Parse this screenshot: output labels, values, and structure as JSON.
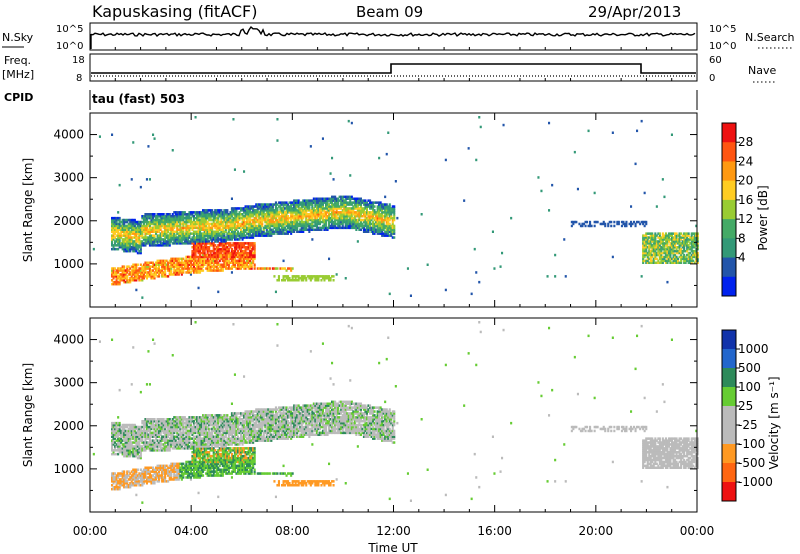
{
  "header": {
    "title": "Kapuskasing (fitACF)",
    "beam": "Beam 09",
    "date": "29/Apr/2013"
  },
  "noise_panel": {
    "left_label": "N.Sky",
    "right_label": "N.Search",
    "left_ticks": [
      "10^5",
      "10^0"
    ],
    "right_ticks": [
      "10^5",
      "10^0"
    ]
  },
  "freq_panel": {
    "left_label_1": "Freq.",
    "left_label_2": "[MHz]",
    "right_label": "Nave",
    "left_ticks": [
      "18",
      "8"
    ],
    "right_ticks": [
      "60",
      "0"
    ]
  },
  "cpid_panel": {
    "label": "CPID",
    "mode_text": "tau (fast) 503"
  },
  "chart_data": [
    {
      "type": "heatmap",
      "name": "power",
      "ylabel": "Slant Range [km]",
      "yticks": [
        "1000",
        "2000",
        "3000",
        "4000"
      ],
      "ylim": [
        0,
        4500
      ],
      "colorbar_label": "Power [dB]",
      "colorbar_ticks": [
        "28",
        "24",
        "20",
        "16",
        "12",
        "8",
        "4"
      ],
      "colorbar_colors": [
        "#ee1111",
        "#ff5511",
        "#ff9911",
        "#ffcc22",
        "#99cc33",
        "#44aa66",
        "#339977",
        "#2255aa",
        "#0022ee"
      ],
      "x_range_hours": [
        0,
        24
      ],
      "regions": [
        {
          "t0": 0.8,
          "t1": 12.0,
          "r_center": 1500,
          "dominant": "green/red",
          "note": "main echo band"
        },
        {
          "t0": 21.8,
          "t1": 24.0,
          "r_center": 1300,
          "dominant": "green"
        }
      ]
    },
    {
      "type": "heatmap",
      "name": "velocity",
      "ylabel": "Slant Range [km]",
      "yticks": [
        "1000",
        "2000",
        "3000",
        "4000"
      ],
      "ylim": [
        0,
        4500
      ],
      "colorbar_label": "Velocity [m s⁻¹]",
      "colorbar_ticks": [
        "1000",
        "500",
        "100",
        "25",
        "-25",
        "-100",
        "-500",
        "-1000"
      ],
      "colorbar_colors": [
        "#1133aa",
        "#2266cc",
        "#2d8a5a",
        "#66cc33",
        "#bbbbbb",
        "#bbbbbb",
        "#ff9922",
        "#ff6611",
        "#ee1111"
      ],
      "x_range_hours": [
        0,
        24
      ]
    }
  ],
  "xaxis": {
    "ticks": [
      "00:00",
      "04:00",
      "08:00",
      "12:00",
      "16:00",
      "20:00",
      "00:00"
    ],
    "label": "Time UT"
  }
}
